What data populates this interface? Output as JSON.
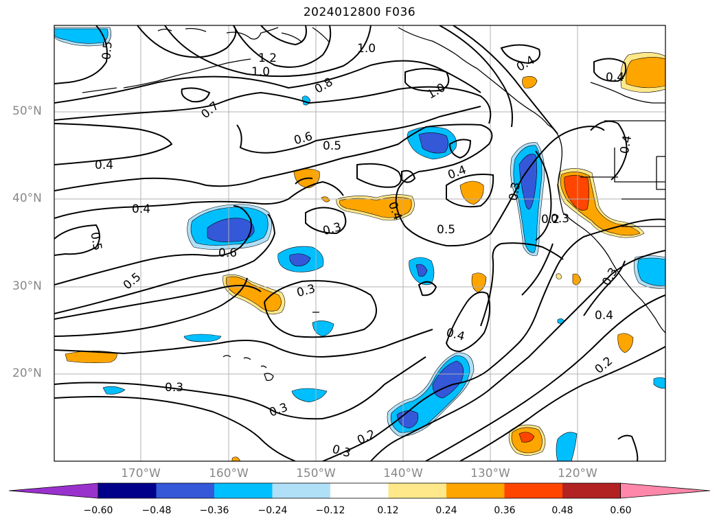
{
  "title": "2024012800 F036",
  "lat_labels": [
    "50°N",
    "40°N",
    "30°N",
    "20°N"
  ],
  "lon_labels": [
    "170°W",
    "160°W",
    "150°W",
    "140°W",
    "130°W",
    "120°W"
  ],
  "colorbar": {
    "ticks": [
      "−0.60",
      "−0.48",
      "−0.36",
      "−0.24",
      "−0.12",
      "0.12",
      "0.24",
      "0.36",
      "0.48",
      "0.60"
    ],
    "colors": [
      "#9932cc",
      "#00008b",
      "#3458d8",
      "#00bfff",
      "#b0e0f8",
      "#ffffff",
      "#ffe88a",
      "#ffa500",
      "#ff4500",
      "#b22222",
      "#ff88aa"
    ]
  },
  "contour_labels": [
    "0.5",
    "1.2",
    "1.0",
    "1.0",
    "0.4",
    "1.0",
    "0.8",
    "0.7",
    "0.4",
    "0.6",
    "0.5",
    "0.4",
    "0.4",
    "0.3",
    "0.4",
    "0.3",
    "0.4",
    "0.2",
    "0.5",
    "0.5",
    "0.6",
    "0.3",
    "0.4",
    "0.4",
    "0.3",
    "0.5",
    "0.4",
    "0.2",
    "0.3",
    "0.3",
    "0.3",
    "0.2",
    "0.3"
  ]
}
